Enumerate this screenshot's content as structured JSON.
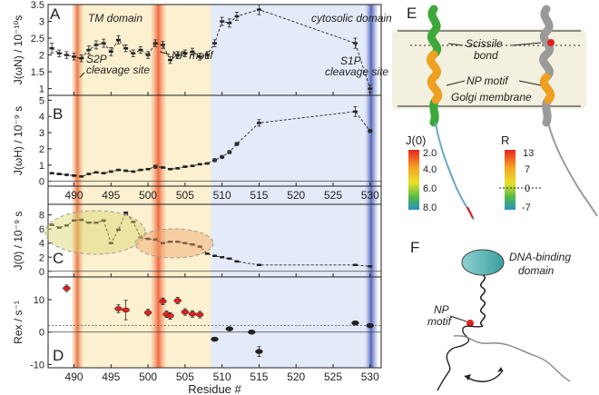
{
  "chart_data": [
    {
      "panel": "A",
      "type": "line",
      "ylabel": "J(ωN) / 10⁻¹⁰s",
      "ylim": [
        0.8,
        3.5
      ],
      "yticks": [
        1,
        1.5,
        2,
        2.5,
        3,
        3.5
      ],
      "xlim": [
        486.5,
        531.5
      ],
      "xticks": [
        490,
        495,
        500,
        505,
        510,
        515,
        520,
        525,
        530
      ],
      "x": [
        487,
        488,
        489,
        490,
        491,
        492,
        493,
        494,
        495,
        496,
        497,
        498,
        499,
        500,
        501,
        502,
        503,
        504,
        505,
        506,
        507,
        508,
        509,
        510,
        511,
        512,
        515,
        528,
        530
      ],
      "y": [
        2.2,
        2.05,
        2.0,
        1.95,
        1.9,
        2.15,
        2.3,
        2.35,
        2.1,
        2.45,
        2.2,
        2.05,
        2.15,
        2.0,
        2.35,
        2.3,
        1.85,
        2.0,
        2.05,
        2.1,
        1.95,
        2.0,
        2.35,
        3.0,
        2.95,
        3.15,
        3.35,
        2.35,
        1.0
      ],
      "err": [
        0.15,
        0.1,
        0.1,
        0.1,
        0.1,
        0.12,
        0.12,
        0.12,
        0.12,
        0.12,
        0.1,
        0.1,
        0.1,
        0.1,
        0.1,
        0.1,
        0.1,
        0.1,
        0.1,
        0.1,
        0.1,
        0.1,
        0.1,
        0.12,
        0.12,
        0.12,
        0.15,
        0.15,
        0.1
      ]
    },
    {
      "panel": "B",
      "type": "line",
      "ylabel": "J(ωH) / 10⁻⁹ s",
      "ylim": [
        -0.3,
        5.3
      ],
      "yticks": [
        0,
        1,
        2,
        3,
        4,
        5
      ],
      "xlim": [
        486.5,
        531.5
      ],
      "xticks": [
        490,
        495,
        500,
        505,
        510,
        515,
        520,
        525,
        530
      ],
      "x": [
        487,
        488,
        489,
        490,
        491,
        492,
        493,
        494,
        495,
        496,
        497,
        498,
        499,
        500,
        501,
        502,
        503,
        504,
        505,
        506,
        507,
        508,
        509,
        510,
        511,
        512,
        515,
        528,
        530
      ],
      "y": [
        0.5,
        0.45,
        0.4,
        0.35,
        0.3,
        0.45,
        0.55,
        0.5,
        0.6,
        0.7,
        0.65,
        0.6,
        0.7,
        0.75,
        0.9,
        0.85,
        0.75,
        0.8,
        0.9,
        0.95,
        1.05,
        1.1,
        1.3,
        1.5,
        1.8,
        2.3,
        3.6,
        4.3,
        3.1
      ],
      "err": [
        0.05,
        0.05,
        0.05,
        0.05,
        0.05,
        0.05,
        0.05,
        0.05,
        0.05,
        0.05,
        0.05,
        0.05,
        0.05,
        0.05,
        0.1,
        0.05,
        0.05,
        0.05,
        0.05,
        0.05,
        0.05,
        0.05,
        0.1,
        0.1,
        0.1,
        0.1,
        0.2,
        0.3,
        0.1
      ]
    },
    {
      "panel": "C",
      "type": "line",
      "ylabel": "J(0) / 10⁻⁹ s",
      "ylim": [
        -0.8,
        9.5
      ],
      "yticks": [
        0,
        2,
        4,
        6,
        8
      ],
      "xlim": [
        486.5,
        531.5
      ],
      "xticks": [
        490,
        495,
        500,
        505,
        510,
        515,
        520,
        525,
        530
      ],
      "x": [
        487,
        488,
        489,
        490,
        491,
        492,
        493,
        494,
        495,
        496,
        497,
        498,
        499,
        500,
        501,
        502,
        503,
        504,
        505,
        506,
        507,
        508,
        509,
        510,
        511,
        512,
        515,
        528,
        530
      ],
      "y": [
        6.6,
        6.2,
        6.5,
        7.2,
        7.3,
        6.9,
        6.9,
        7.2,
        4.0,
        5.9,
        8.3,
        7.0,
        4.8,
        4.6,
        4.5,
        4.0,
        4.2,
        4.2,
        4.0,
        3.8,
        3.5,
        2.5,
        2.2,
        2.0,
        1.8,
        1.4,
        0.9,
        0.9,
        0.7
      ],
      "err": [
        0.1,
        0.1,
        0.1,
        0.1,
        0.1,
        0.1,
        0.1,
        0.1,
        0.1,
        0.1,
        0.1,
        0.1,
        0.1,
        0.1,
        0.1,
        0.1,
        0.1,
        0.1,
        0.1,
        0.1,
        0.1,
        0.1,
        0.1,
        0.1,
        0.1,
        0.1,
        0.1,
        0.1,
        0.1
      ]
    },
    {
      "panel": "D",
      "type": "scatter",
      "ylabel": "Rex / s⁻¹",
      "ylim": [
        -11,
        17
      ],
      "yticks": [
        -10,
        0,
        10
      ],
      "xlim": [
        486.5,
        531.5
      ],
      "xticks": [
        490,
        495,
        500,
        505,
        510,
        515,
        520,
        525,
        530
      ],
      "xlabel": "Residue #",
      "x": [
        489,
        496,
        497,
        500,
        502,
        502.5,
        503,
        504,
        505,
        506,
        507,
        509,
        511,
        514,
        515,
        528,
        530
      ],
      "y": [
        13.5,
        7.2,
        6.8,
        6.0,
        9.5,
        5.5,
        5.0,
        9.7,
        6.2,
        5.6,
        5.4,
        -2.2,
        1.0,
        0.0,
        -6.0,
        2.8,
        2.0
      ],
      "err": [
        1.0,
        1.2,
        3.0,
        1.0,
        1.0,
        1.0,
        1.0,
        1.0,
        1.0,
        1.0,
        1.0,
        0.5,
        0.5,
        0.5,
        1.5,
        0.6,
        0.5
      ],
      "colors": [
        "red",
        "red",
        "red",
        "red",
        "red",
        "red",
        "red",
        "red",
        "red",
        "red",
        "red",
        "black",
        "black",
        "black",
        "black",
        "black",
        "black"
      ]
    }
  ],
  "labels": {
    "panel_a": "A",
    "panel_b": "B",
    "panel_c": "C",
    "panel_d": "D",
    "panel_e": "E",
    "panel_f": "F",
    "tm_domain": "TM domain",
    "cytosolic_domain": "cytosolic domain",
    "s2p_1": "S2P",
    "s2p_2": "cleavage site",
    "np_motif": "NP motif",
    "s1p_1": "S1P",
    "s1p_2": "cleavage site",
    "scissile_1": "Scissile",
    "scissile_2": "bond",
    "np_motif_e": "NP motif",
    "golgi": "Golgi membrane",
    "dna_1": "DNA-binding",
    "dna_2": "domain",
    "np_f_1": "NP",
    "np_f_2": "motif",
    "legend_j0_title": "J(0)",
    "legend_j0_ticks": [
      "2.0",
      "4.0",
      "6.0",
      "8.0"
    ],
    "legend_rex_title": "Rex",
    "legend_rex_ticks": [
      "13",
      "7",
      "0",
      "-7"
    ]
  },
  "colors": {
    "s2p_band": "#e8823f",
    "np_band": "#f06a3c",
    "s1p_band": "#5a6fc0",
    "tm_shade": "#fbf0cf",
    "cyto_shade": "#e3ebf8",
    "red_point": "#e02020"
  }
}
